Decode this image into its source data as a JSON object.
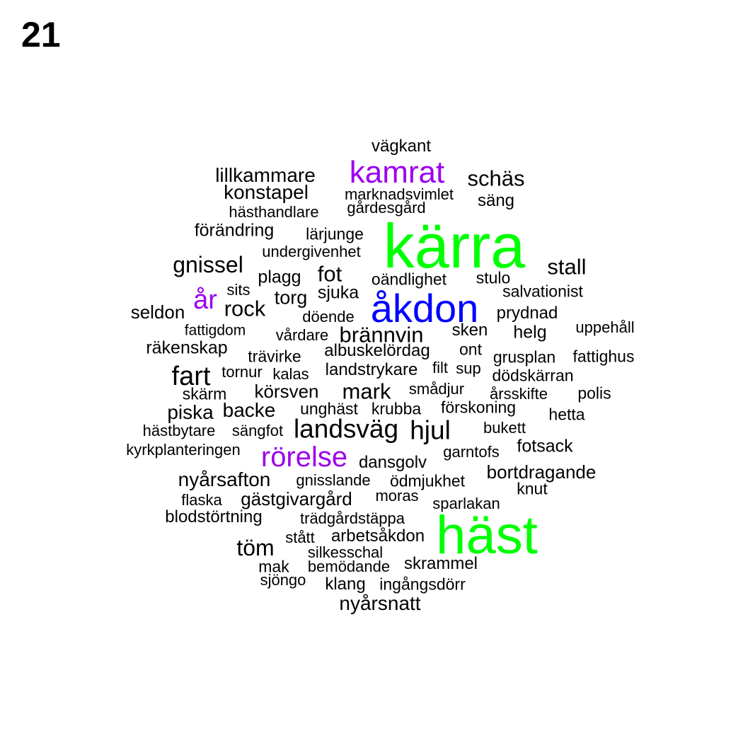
{
  "page_number": "21",
  "colors": {
    "green": "#00ff00",
    "blue": "#0000ff",
    "purple": "#9b00ee",
    "black": "#000000"
  },
  "words": [
    {
      "text": "kärra",
      "color": "green"
    },
    {
      "text": "häst",
      "color": "green"
    },
    {
      "text": "åkdon",
      "color": "blue"
    },
    {
      "text": "kamrat",
      "color": "purple"
    },
    {
      "text": "rörelse",
      "color": "purple"
    },
    {
      "text": "år",
      "color": "purple"
    },
    {
      "text": "vägkant",
      "color": "black"
    },
    {
      "text": "lillkammare",
      "color": "black"
    },
    {
      "text": "schäs",
      "color": "black"
    },
    {
      "text": "konstapel",
      "color": "black"
    },
    {
      "text": "marknadsvimlet",
      "color": "black"
    },
    {
      "text": "säng",
      "color": "black"
    },
    {
      "text": "gårdesgård",
      "color": "black"
    },
    {
      "text": "hästhandlare",
      "color": "black"
    },
    {
      "text": "förändring",
      "color": "black"
    },
    {
      "text": "lärjunge",
      "color": "black"
    },
    {
      "text": "undergivenhet",
      "color": "black"
    },
    {
      "text": "gnissel",
      "color": "black"
    },
    {
      "text": "stall",
      "color": "black"
    },
    {
      "text": "fot",
      "color": "black"
    },
    {
      "text": "plagg",
      "color": "black"
    },
    {
      "text": "oändlighet",
      "color": "black"
    },
    {
      "text": "stulo",
      "color": "black"
    },
    {
      "text": "sits",
      "color": "black"
    },
    {
      "text": "sjuka",
      "color": "black"
    },
    {
      "text": "salvationist",
      "color": "black"
    },
    {
      "text": "torg",
      "color": "black"
    },
    {
      "text": "rock",
      "color": "black"
    },
    {
      "text": "seldon",
      "color": "black"
    },
    {
      "text": "döende",
      "color": "black"
    },
    {
      "text": "prydnad",
      "color": "black"
    },
    {
      "text": "uppehåll",
      "color": "black"
    },
    {
      "text": "fattigdom",
      "color": "black"
    },
    {
      "text": "vårdare",
      "color": "black"
    },
    {
      "text": "brännvin",
      "color": "black"
    },
    {
      "text": "sken",
      "color": "black"
    },
    {
      "text": "helg",
      "color": "black"
    },
    {
      "text": "räkenskap",
      "color": "black"
    },
    {
      "text": "albuskelördag",
      "color": "black"
    },
    {
      "text": "ont",
      "color": "black"
    },
    {
      "text": "grusplan",
      "color": "black"
    },
    {
      "text": "fattighus",
      "color": "black"
    },
    {
      "text": "trävirke",
      "color": "black"
    },
    {
      "text": "fart",
      "color": "black"
    },
    {
      "text": "tornur",
      "color": "black"
    },
    {
      "text": "kalas",
      "color": "black"
    },
    {
      "text": "landstrykare",
      "color": "black"
    },
    {
      "text": "filt",
      "color": "black"
    },
    {
      "text": "sup",
      "color": "black"
    },
    {
      "text": "dödskärran",
      "color": "black"
    },
    {
      "text": "skärm",
      "color": "black"
    },
    {
      "text": "körsven",
      "color": "black"
    },
    {
      "text": "mark",
      "color": "black"
    },
    {
      "text": "smådjur",
      "color": "black"
    },
    {
      "text": "årsskifte",
      "color": "black"
    },
    {
      "text": "polis",
      "color": "black"
    },
    {
      "text": "piska",
      "color": "black"
    },
    {
      "text": "backe",
      "color": "black"
    },
    {
      "text": "unghäst",
      "color": "black"
    },
    {
      "text": "krubba",
      "color": "black"
    },
    {
      "text": "förskoning",
      "color": "black"
    },
    {
      "text": "hetta",
      "color": "black"
    },
    {
      "text": "hästbytare",
      "color": "black"
    },
    {
      "text": "sängfot",
      "color": "black"
    },
    {
      "text": "landsväg",
      "color": "black"
    },
    {
      "text": "hjul",
      "color": "black"
    },
    {
      "text": "bukett",
      "color": "black"
    },
    {
      "text": "kyrkplanteringen",
      "color": "black"
    },
    {
      "text": "fotsack",
      "color": "black"
    },
    {
      "text": "garntofs",
      "color": "black"
    },
    {
      "text": "dansgolv",
      "color": "black"
    },
    {
      "text": "bortdragande",
      "color": "black"
    },
    {
      "text": "nyårsafton",
      "color": "black"
    },
    {
      "text": "gnisslande",
      "color": "black"
    },
    {
      "text": "ödmjukhet",
      "color": "black"
    },
    {
      "text": "knut",
      "color": "black"
    },
    {
      "text": "flaska",
      "color": "black"
    },
    {
      "text": "gästgivargård",
      "color": "black"
    },
    {
      "text": "moras",
      "color": "black"
    },
    {
      "text": "sparlakan",
      "color": "black"
    },
    {
      "text": "blodstörtning",
      "color": "black"
    },
    {
      "text": "trädgårdstäppa",
      "color": "black"
    },
    {
      "text": "stått",
      "color": "black"
    },
    {
      "text": "arbetsåkdon",
      "color": "black"
    },
    {
      "text": "töm",
      "color": "black"
    },
    {
      "text": "silkesschal",
      "color": "black"
    },
    {
      "text": "mak",
      "color": "black"
    },
    {
      "text": "bemödande",
      "color": "black"
    },
    {
      "text": "skrammel",
      "color": "black"
    },
    {
      "text": "sjöngo",
      "color": "black"
    },
    {
      "text": "klang",
      "color": "black"
    },
    {
      "text": "ingångsdörr",
      "color": "black"
    },
    {
      "text": "nyårsnatt",
      "color": "black"
    }
  ]
}
